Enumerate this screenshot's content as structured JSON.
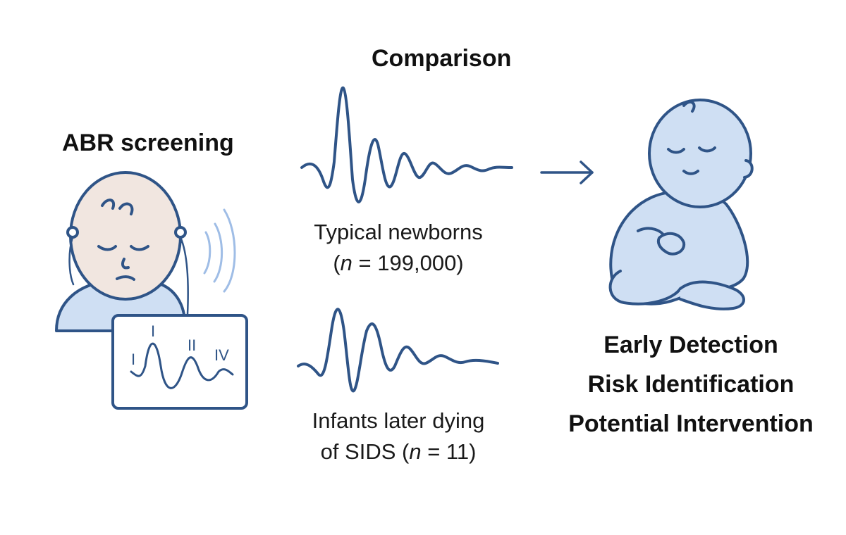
{
  "left": {
    "title": "ABR screening"
  },
  "center": {
    "title": "Comparison",
    "typical": {
      "line1": "Typical newborns",
      "line2_prefix": "(",
      "line2_n": "n",
      "line2_rest": " = 199,000)"
    },
    "sids": {
      "line1": "Infants later dying",
      "line2_prefix": "of SIDS (",
      "line2_n": "n",
      "line2_rest": " = 11)"
    }
  },
  "monitor": {
    "peak_labels": [
      "I",
      "I",
      "II",
      "IV"
    ]
  },
  "outcomes": [
    "Early Detection",
    "Risk Identification",
    "Potential Intervention"
  ],
  "colors": {
    "stroke": "#2f5487",
    "fill_light": "#cfdff3",
    "skin": "#f1e6e0",
    "signal": "#9fbde6"
  },
  "icons": [
    "baby-head-icon",
    "monitor-icon",
    "waveform-icon",
    "arrow-right-icon",
    "sleeping-baby-icon"
  ]
}
